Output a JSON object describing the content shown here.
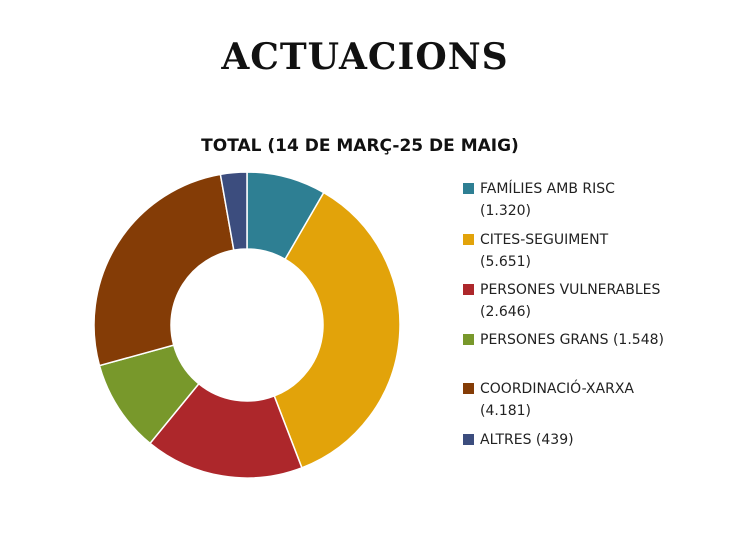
{
  "page": {
    "title": "ACTUACIONS"
  },
  "chart_data": {
    "type": "pie",
    "title": "TOTAL (14 DE MARÇ-25 DE MAIG)",
    "donut": true,
    "legend_position": "right",
    "categories": [
      "FAMÍLIES AMB RISC",
      "CITES-SEGUIMENT",
      "PERSONES VULNERABLES",
      "PERSONES GRANS",
      "COORDINACIÓ-XARXA",
      "ALTRES"
    ],
    "values": [
      1320,
      5651,
      2646,
      1548,
      4181,
      439
    ],
    "value_labels": [
      "1.320",
      "5.651",
      "2.646",
      "1.548",
      "4.181",
      "439"
    ],
    "legend_labels": [
      "FAMÍLIES AMB RISC\n(1.320)",
      "CITES-SEGUIMENT\n(5.651)",
      "PERSONES VULNERABLES\n(2.646)",
      "PERSONES GRANS (1.548)",
      "COORDINACIÓ-XARXA\n(4.181)",
      "ALTRES (439)"
    ],
    "colors": [
      "#2E7F93",
      "#E2A30A",
      "#AD272B",
      "#78982B",
      "#843C06",
      "#3C4D7E"
    ]
  }
}
